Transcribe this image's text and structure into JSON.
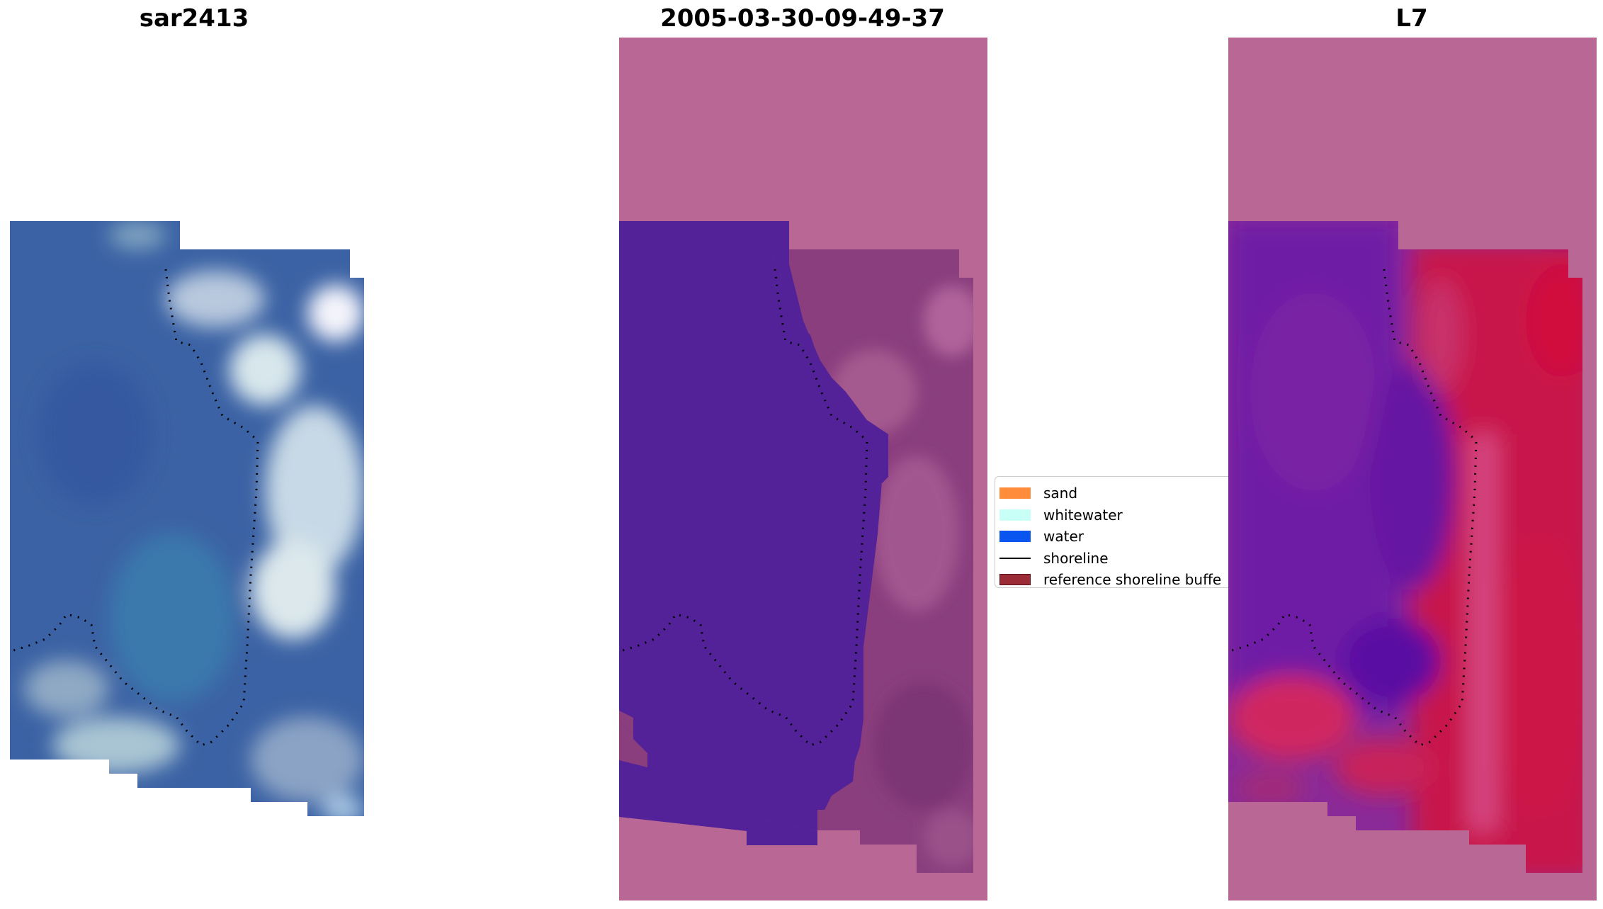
{
  "panels": [
    {
      "title": "sar2413"
    },
    {
      "title": "2005-03-30-09-49-37"
    },
    {
      "title": "L7"
    }
  ],
  "legend": {
    "items": [
      {
        "label": "sand",
        "color": "#ff8c3a"
      },
      {
        "label": "whitewater",
        "color": "#c8fff6"
      },
      {
        "label": "water",
        "color": "#0a55f0"
      },
      {
        "label": "shoreline",
        "color": "#000000"
      },
      {
        "label": "reference shoreline buffe",
        "color": "#9b2b36"
      }
    ]
  },
  "colors": {
    "nodata_overlay": "#b96896",
    "water_class": "#532198",
    "rgb_water": "#3a64a8",
    "rgb_whitewater": "#dde8ef",
    "l7_water": "#6c1aa4",
    "l7_land": "#c8144a"
  }
}
